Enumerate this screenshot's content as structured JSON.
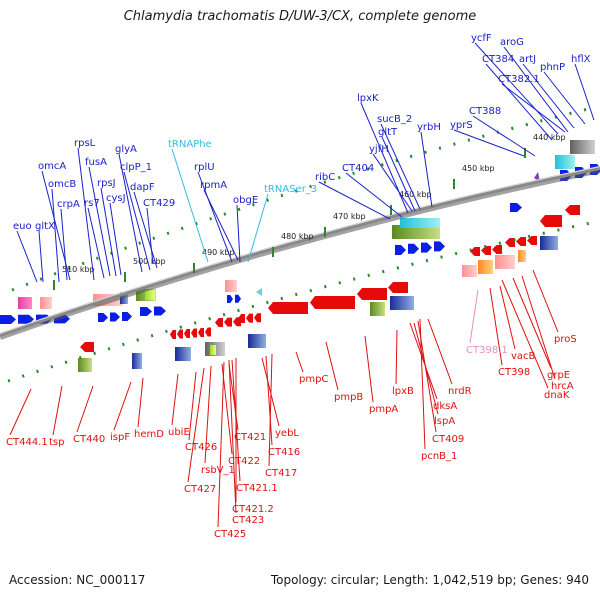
{
  "title": "Chlamydia trachomatis D/UW-3/CX, complete genome",
  "footer": {
    "accession": "Accession: NC_000117",
    "summary": "Topology: circular; Length: 1,042,519 bp; Genes: 940"
  },
  "colors": {
    "forward_gene": "#0a1ee6",
    "reverse_gene": "#e60a0a",
    "blue_label": "#1a22c8",
    "red_label": "#e01010",
    "trna_label": "#33bbe6",
    "pink_label": "#e88fc0",
    "backbone": "#888888",
    "tick": "#2a8a2a"
  },
  "ticks": [
    {
      "label": "510 kbp"
    },
    {
      "label": "500 kbp"
    },
    {
      "label": "490 kbp"
    },
    {
      "label": "480 kbp"
    },
    {
      "label": "470 kbp"
    },
    {
      "label": "460 kbp"
    },
    {
      "label": "450 kbp"
    },
    {
      "label": "440 kbp"
    }
  ],
  "top_labels": [
    {
      "text": "euo",
      "type": "forward"
    },
    {
      "text": "gltX",
      "type": "forward"
    },
    {
      "text": "omcB",
      "type": "forward"
    },
    {
      "text": "omcA",
      "type": "forward"
    },
    {
      "text": "crpA",
      "type": "forward"
    },
    {
      "text": "rs7",
      "type": "forward"
    },
    {
      "text": "rpsL",
      "type": "forward"
    },
    {
      "text": "fusA",
      "type": "forward"
    },
    {
      "text": "rpsJ",
      "type": "forward"
    },
    {
      "text": "cysJ",
      "type": "forward"
    },
    {
      "text": "glyA",
      "type": "forward"
    },
    {
      "text": "clpP_1",
      "type": "forward"
    },
    {
      "text": "dapF",
      "type": "forward"
    },
    {
      "text": "CT429",
      "type": "forward"
    },
    {
      "text": "tRNAPhe",
      "type": "trna"
    },
    {
      "text": "rplU",
      "type": "forward"
    },
    {
      "text": "rpmA",
      "type": "forward"
    },
    {
      "text": "obgE",
      "type": "forward"
    },
    {
      "text": "tRNASer_3",
      "type": "trna"
    },
    {
      "text": "ribC",
      "type": "forward"
    },
    {
      "text": "CT404",
      "type": "forward"
    },
    {
      "text": "lpxK",
      "type": "forward"
    },
    {
      "text": "gltT",
      "type": "forward"
    },
    {
      "text": "sucB_2",
      "type": "forward"
    },
    {
      "text": "yjfH",
      "type": "forward"
    },
    {
      "text": "yrbH",
      "type": "forward"
    },
    {
      "text": "yprS",
      "type": "forward"
    },
    {
      "text": "CT388",
      "type": "forward"
    },
    {
      "text": "CT384",
      "type": "forward"
    },
    {
      "text": "ycfF",
      "type": "forward"
    },
    {
      "text": "aroG",
      "type": "forward"
    },
    {
      "text": "artJ",
      "type": "forward"
    },
    {
      "text": "CT382.1",
      "type": "forward"
    },
    {
      "text": "phnP",
      "type": "forward"
    },
    {
      "text": "hflX",
      "type": "forward"
    }
  ],
  "bottom_labels": [
    {
      "text": "CT444.1",
      "type": "reverse"
    },
    {
      "text": "tsp",
      "type": "reverse"
    },
    {
      "text": "CT440",
      "type": "reverse"
    },
    {
      "text": "ispF",
      "type": "reverse"
    },
    {
      "text": "hemD",
      "type": "reverse"
    },
    {
      "text": "ubiE",
      "type": "reverse"
    },
    {
      "text": "CT426",
      "type": "reverse"
    },
    {
      "text": "CT427",
      "type": "reverse"
    },
    {
      "text": "rsbV_1",
      "type": "reverse"
    },
    {
      "text": "CT422",
      "type": "reverse"
    },
    {
      "text": "CT421",
      "type": "reverse"
    },
    {
      "text": "CT421.1",
      "type": "reverse"
    },
    {
      "text": "CT421.2",
      "type": "reverse"
    },
    {
      "text": "CT423",
      "type": "reverse"
    },
    {
      "text": "CT425",
      "type": "reverse"
    },
    {
      "text": "yebL",
      "type": "reverse"
    },
    {
      "text": "CT416",
      "type": "reverse"
    },
    {
      "text": "CT417",
      "type": "reverse"
    },
    {
      "text": "pmpC",
      "type": "reverse"
    },
    {
      "text": "pmpB",
      "type": "reverse"
    },
    {
      "text": "pmpA",
      "type": "reverse"
    },
    {
      "text": "lpxB",
      "type": "reverse"
    },
    {
      "text": "dksA",
      "type": "reverse"
    },
    {
      "text": "lspA",
      "type": "reverse"
    },
    {
      "text": "CT409",
      "type": "reverse"
    },
    {
      "text": "pcnB_1",
      "type": "reverse"
    },
    {
      "text": "nrdR",
      "type": "reverse"
    },
    {
      "text": "CT398.1",
      "type": "pink"
    },
    {
      "text": "vacB",
      "type": "reverse"
    },
    {
      "text": "CT398",
      "type": "reverse"
    },
    {
      "text": "proS",
      "type": "reverse"
    },
    {
      "text": "hrcA",
      "type": "reverse"
    },
    {
      "text": "grpE",
      "type": "reverse"
    },
    {
      "text": "dnaK",
      "type": "reverse"
    }
  ]
}
